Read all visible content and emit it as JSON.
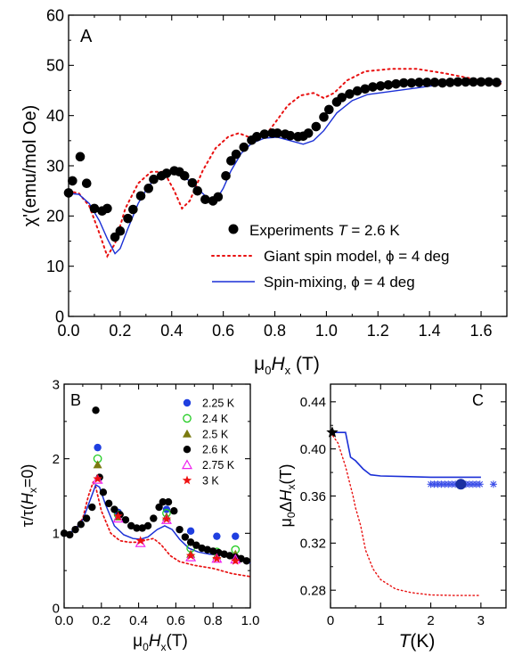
{
  "chart_data": [
    {
      "panel": "A",
      "type": "line",
      "ylabel": "χ'(emu/mol Oe)",
      "xlabel_main": "μ",
      "xlabel_sub1": "0",
      "xlabel_mid": "H",
      "xlabel_sub2": "x",
      "xlabel_tail": " (T)",
      "xlim": [
        0.0,
        1.7
      ],
      "ylim": [
        0,
        60
      ],
      "xticks": [
        "0.0",
        "0.2",
        "0.4",
        "0.6",
        "0.8",
        "1.0",
        "1.2",
        "1.4",
        "1.6"
      ],
      "yticks": [
        "0",
        "10",
        "20",
        "30",
        "40",
        "50",
        "60"
      ],
      "legend": {
        "experiments_prefix": "Experiments",
        "experiments_T": "T",
        "experiments_suffix": " = 2.6 K",
        "giant": "Giant spin model, ϕ = 4 deg",
        "mixing": "Spin-mixing, ϕ = 4 deg"
      },
      "experiments": [
        [
          0.0,
          24.6
        ],
        [
          0.015,
          27.0
        ],
        [
          0.045,
          31.8
        ],
        [
          0.07,
          26.5
        ],
        [
          0.1,
          21.5
        ],
        [
          0.13,
          21.0
        ],
        [
          0.15,
          21.5
        ],
        [
          0.18,
          15.8
        ],
        [
          0.2,
          17.0
        ],
        [
          0.23,
          19.5
        ],
        [
          0.25,
          21.3
        ],
        [
          0.28,
          24.0
        ],
        [
          0.31,
          25.5
        ],
        [
          0.33,
          27.3
        ],
        [
          0.36,
          28.0
        ],
        [
          0.38,
          28.5
        ],
        [
          0.41,
          29.0
        ],
        [
          0.43,
          28.8
        ],
        [
          0.45,
          28.0
        ],
        [
          0.48,
          26.6
        ],
        [
          0.5,
          25.0
        ],
        [
          0.53,
          23.3
        ],
        [
          0.56,
          23.0
        ],
        [
          0.58,
          23.8
        ],
        [
          0.61,
          28.0
        ],
        [
          0.63,
          31.0
        ],
        [
          0.65,
          32.3
        ],
        [
          0.68,
          33.7
        ],
        [
          0.71,
          35.1
        ],
        [
          0.73,
          35.8
        ],
        [
          0.76,
          36.3
        ],
        [
          0.79,
          36.5
        ],
        [
          0.81,
          36.5
        ],
        [
          0.84,
          36.3
        ],
        [
          0.86,
          36.0
        ],
        [
          0.89,
          35.8
        ],
        [
          0.91,
          35.9
        ],
        [
          0.93,
          36.5
        ],
        [
          0.96,
          37.8
        ],
        [
          0.99,
          39.7
        ],
        [
          1.01,
          41.2
        ],
        [
          1.04,
          42.7
        ],
        [
          1.06,
          43.6
        ],
        [
          1.09,
          44.3
        ],
        [
          1.12,
          44.9
        ],
        [
          1.15,
          45.3
        ],
        [
          1.18,
          45.7
        ],
        [
          1.21,
          45.9
        ],
        [
          1.24,
          46.1
        ],
        [
          1.27,
          46.3
        ],
        [
          1.3,
          46.5
        ],
        [
          1.33,
          46.5
        ],
        [
          1.36,
          46.6
        ],
        [
          1.39,
          46.6
        ],
        [
          1.42,
          46.6
        ],
        [
          1.45,
          46.5
        ],
        [
          1.48,
          46.6
        ],
        [
          1.51,
          46.7
        ],
        [
          1.54,
          46.7
        ],
        [
          1.57,
          46.7
        ],
        [
          1.6,
          46.7
        ],
        [
          1.63,
          46.7
        ],
        [
          1.66,
          46.6
        ]
      ],
      "giant_spin": [
        [
          0.0,
          25.0
        ],
        [
          0.04,
          24.5
        ],
        [
          0.08,
          22.0
        ],
        [
          0.12,
          16.5
        ],
        [
          0.15,
          12.0
        ],
        [
          0.18,
          14.5
        ],
        [
          0.22,
          21.5
        ],
        [
          0.27,
          26.5
        ],
        [
          0.32,
          28.8
        ],
        [
          0.37,
          28.8
        ],
        [
          0.41,
          25.0
        ],
        [
          0.44,
          21.5
        ],
        [
          0.47,
          23.0
        ],
        [
          0.52,
          29.0
        ],
        [
          0.57,
          33.5
        ],
        [
          0.62,
          35.8
        ],
        [
          0.66,
          36.5
        ],
        [
          0.71,
          35.5
        ],
        [
          0.76,
          35.8
        ],
        [
          0.8,
          38.5
        ],
        [
          0.85,
          42.0
        ],
        [
          0.9,
          44.0
        ],
        [
          0.95,
          44.5
        ],
        [
          0.99,
          43.5
        ],
        [
          1.03,
          44.5
        ],
        [
          1.08,
          47.0
        ],
        [
          1.15,
          48.8
        ],
        [
          1.25,
          49.3
        ],
        [
          1.35,
          49.3
        ],
        [
          1.45,
          48.5
        ],
        [
          1.55,
          47.5
        ],
        [
          1.68,
          46.3
        ]
      ],
      "spin_mixing": [
        [
          0.0,
          24.5
        ],
        [
          0.04,
          24.3
        ],
        [
          0.08,
          22.5
        ],
        [
          0.12,
          19.0
        ],
        [
          0.15,
          15.5
        ],
        [
          0.18,
          12.5
        ],
        [
          0.2,
          13.5
        ],
        [
          0.23,
          17.5
        ],
        [
          0.27,
          22.5
        ],
        [
          0.31,
          26.0
        ],
        [
          0.35,
          28.0
        ],
        [
          0.39,
          28.6
        ],
        [
          0.43,
          28.2
        ],
        [
          0.47,
          27.0
        ],
        [
          0.5,
          25.5
        ],
        [
          0.54,
          23.5
        ],
        [
          0.57,
          23.0
        ],
        [
          0.6,
          25.5
        ],
        [
          0.63,
          29.0
        ],
        [
          0.67,
          32.5
        ],
        [
          0.71,
          34.5
        ],
        [
          0.76,
          35.5
        ],
        [
          0.81,
          35.7
        ],
        [
          0.86,
          35.0
        ],
        [
          0.91,
          34.3
        ],
        [
          0.95,
          35.0
        ],
        [
          0.99,
          37.0
        ],
        [
          1.04,
          40.5
        ],
        [
          1.1,
          43.0
        ],
        [
          1.16,
          44.2
        ],
        [
          1.25,
          44.8
        ],
        [
          1.35,
          45.5
        ],
        [
          1.45,
          46.2
        ],
        [
          1.55,
          46.6
        ],
        [
          1.68,
          46.8
        ]
      ]
    },
    {
      "panel": "B",
      "type": "scatter",
      "ylabel_main": "τ/τ(",
      "ylabel_H": "H",
      "ylabel_sub": "x",
      "ylabel_tail": "=0)",
      "xlabel_main": "μ",
      "xlabel_sub1": "0",
      "xlabel_mid": "H",
      "xlabel_sub2": "x",
      "xlabel_tail": "(T)",
      "xlim": [
        0.0,
        1.0
      ],
      "ylim": [
        0,
        3
      ],
      "xticks": [
        "0.0",
        "0.2",
        "0.4",
        "0.6",
        "0.8",
        "1.0"
      ],
      "yticks": [
        "0",
        "1",
        "2",
        "3"
      ],
      "legend": [
        "2.25 K",
        "2.4 K",
        "2.5 K",
        "2.6 K",
        "2.75 K",
        "3 K"
      ],
      "colors": {
        "blue": "#1f3fe0",
        "green": "#22cc22",
        "olive": "#7a7a10",
        "black": "#000000",
        "magenta": "#ee22ee",
        "red": "#ee1111"
      },
      "series": [
        {
          "name": "2.25 K",
          "points": [
            [
              0.18,
              2.15
            ],
            [
              0.29,
              1.28
            ],
            [
              0.55,
              1.32
            ],
            [
              0.68,
              1.03
            ],
            [
              0.82,
              0.96
            ],
            [
              0.92,
              0.96
            ]
          ]
        },
        {
          "name": "2.4 K",
          "points": [
            [
              0.18,
              2.0
            ],
            [
              0.29,
              1.25
            ],
            [
              0.55,
              1.27
            ],
            [
              0.68,
              0.8
            ],
            [
              0.82,
              0.75
            ],
            [
              0.92,
              0.78
            ]
          ]
        },
        {
          "name": "2.5 K",
          "points": [
            [
              0.18,
              1.92
            ],
            [
              0.29,
              1.22
            ],
            [
              0.55,
              1.22
            ],
            [
              0.68,
              0.72
            ],
            [
              0.82,
              0.7
            ],
            [
              0.92,
              0.72
            ]
          ]
        },
        {
          "name": "2.6 K",
          "points": [
            [
              0.0,
              1.0
            ],
            [
              0.03,
              0.98
            ],
            [
              0.06,
              1.05
            ],
            [
              0.09,
              1.12
            ],
            [
              0.12,
              1.2
            ],
            [
              0.15,
              1.35
            ],
            [
              0.17,
              2.65
            ],
            [
              0.19,
              1.75
            ],
            [
              0.21,
              1.55
            ],
            [
              0.24,
              1.4
            ],
            [
              0.27,
              1.32
            ],
            [
              0.3,
              1.25
            ],
            [
              0.33,
              1.18
            ],
            [
              0.36,
              1.1
            ],
            [
              0.39,
              1.07
            ],
            [
              0.42,
              1.07
            ],
            [
              0.45,
              1.1
            ],
            [
              0.48,
              1.2
            ],
            [
              0.51,
              1.35
            ],
            [
              0.53,
              1.42
            ],
            [
              0.56,
              1.42
            ],
            [
              0.59,
              1.3
            ],
            [
              0.62,
              1.05
            ],
            [
              0.65,
              0.95
            ],
            [
              0.68,
              0.88
            ],
            [
              0.71,
              0.84
            ],
            [
              0.74,
              0.8
            ],
            [
              0.77,
              0.78
            ],
            [
              0.8,
              0.76
            ],
            [
              0.83,
              0.74
            ],
            [
              0.86,
              0.72
            ],
            [
              0.89,
              0.7
            ],
            [
              0.92,
              0.68
            ],
            [
              0.95,
              0.66
            ],
            [
              0.98,
              0.63
            ]
          ]
        },
        {
          "name": "2.75 K",
          "points": [
            [
              0.18,
              1.72
            ],
            [
              0.29,
              1.2
            ],
            [
              0.41,
              0.87
            ],
            [
              0.55,
              1.18
            ],
            [
              0.68,
              0.68
            ],
            [
              0.82,
              0.66
            ],
            [
              0.92,
              0.65
            ]
          ]
        },
        {
          "name": "3 K",
          "points": [
            [
              0.18,
              1.73
            ],
            [
              0.29,
              1.23
            ],
            [
              0.41,
              0.9
            ],
            [
              0.55,
              1.19
            ],
            [
              0.68,
              0.7
            ],
            [
              0.82,
              0.66
            ],
            [
              0.92,
              0.63
            ]
          ]
        }
      ],
      "model_solid": [
        [
          0.0,
          1.0
        ],
        [
          0.05,
          1.03
        ],
        [
          0.1,
          1.18
        ],
        [
          0.14,
          1.45
        ],
        [
          0.17,
          1.65
        ],
        [
          0.19,
          1.62
        ],
        [
          0.22,
          1.4
        ],
        [
          0.27,
          1.1
        ],
        [
          0.32,
          0.98
        ],
        [
          0.37,
          0.93
        ],
        [
          0.41,
          0.92
        ],
        [
          0.45,
          0.95
        ],
        [
          0.5,
          1.05
        ],
        [
          0.54,
          1.1
        ],
        [
          0.58,
          1.05
        ],
        [
          0.62,
          0.92
        ],
        [
          0.67,
          0.8
        ],
        [
          0.72,
          0.75
        ],
        [
          0.78,
          0.72
        ],
        [
          0.84,
          0.71
        ],
        [
          0.9,
          0.68
        ],
        [
          0.95,
          0.64
        ],
        [
          1.0,
          0.6
        ]
      ],
      "model_dotted": [
        [
          0.0,
          1.0
        ],
        [
          0.05,
          1.03
        ],
        [
          0.1,
          1.2
        ],
        [
          0.13,
          1.5
        ],
        [
          0.155,
          1.68
        ],
        [
          0.17,
          1.62
        ],
        [
          0.2,
          1.3
        ],
        [
          0.25,
          1.0
        ],
        [
          0.3,
          0.9
        ],
        [
          0.35,
          0.88
        ],
        [
          0.4,
          0.88
        ],
        [
          0.44,
          0.91
        ],
        [
          0.48,
          0.93
        ],
        [
          0.52,
          0.85
        ],
        [
          0.57,
          0.7
        ],
        [
          0.62,
          0.62
        ],
        [
          0.7,
          0.57
        ],
        [
          0.8,
          0.53
        ],
        [
          0.9,
          0.46
        ],
        [
          1.0,
          0.42
        ]
      ]
    },
    {
      "panel": "C",
      "type": "line",
      "ylabel_main": "μ",
      "ylabel_sub1": "0",
      "ylabel_mid": "Δ",
      "ylabel_H": "H",
      "ylabel_sub2": "x",
      "ylabel_tail": "(T)",
      "xlabel_T": "T",
      "xlabel_tail": "(K)",
      "xlim": [
        0,
        3.5
      ],
      "ylim": [
        0.265,
        0.455
      ],
      "xticks": [
        "0",
        "1",
        "2",
        "3"
      ],
      "yticks": [
        "0.28",
        "0.32",
        "0.36",
        "0.40",
        "0.44"
      ],
      "solid": [
        [
          0.0,
          0.414
        ],
        [
          0.3,
          0.414
        ],
        [
          0.4,
          0.393
        ],
        [
          0.5,
          0.39
        ],
        [
          0.65,
          0.383
        ],
        [
          0.8,
          0.378
        ],
        [
          1.0,
          0.377
        ],
        [
          1.5,
          0.3765
        ],
        [
          2.0,
          0.376
        ],
        [
          2.5,
          0.376
        ],
        [
          3.0,
          0.376
        ]
      ],
      "dotted": [
        [
          0.0,
          0.414
        ],
        [
          0.15,
          0.405
        ],
        [
          0.3,
          0.385
        ],
        [
          0.45,
          0.36
        ],
        [
          0.5,
          0.35
        ],
        [
          0.6,
          0.335
        ],
        [
          0.7,
          0.314
        ],
        [
          0.85,
          0.298
        ],
        [
          1.0,
          0.289
        ],
        [
          1.3,
          0.281
        ],
        [
          1.6,
          0.278
        ],
        [
          2.0,
          0.276
        ],
        [
          2.5,
          0.2755
        ],
        [
          3.0,
          0.2755
        ]
      ],
      "stars_x": [
        2.0,
        2.07,
        2.14,
        2.21,
        2.28,
        2.35,
        2.42,
        2.49,
        2.56,
        2.63,
        2.7,
        2.77,
        2.84,
        2.91,
        2.98,
        3.25
      ],
      "stars_y": 0.37,
      "big_point": [
        2.6,
        0.37
      ],
      "black_star": [
        0.0,
        0.414
      ]
    }
  ],
  "panel_labels": {
    "a": "A",
    "b": "B",
    "c": "C"
  }
}
